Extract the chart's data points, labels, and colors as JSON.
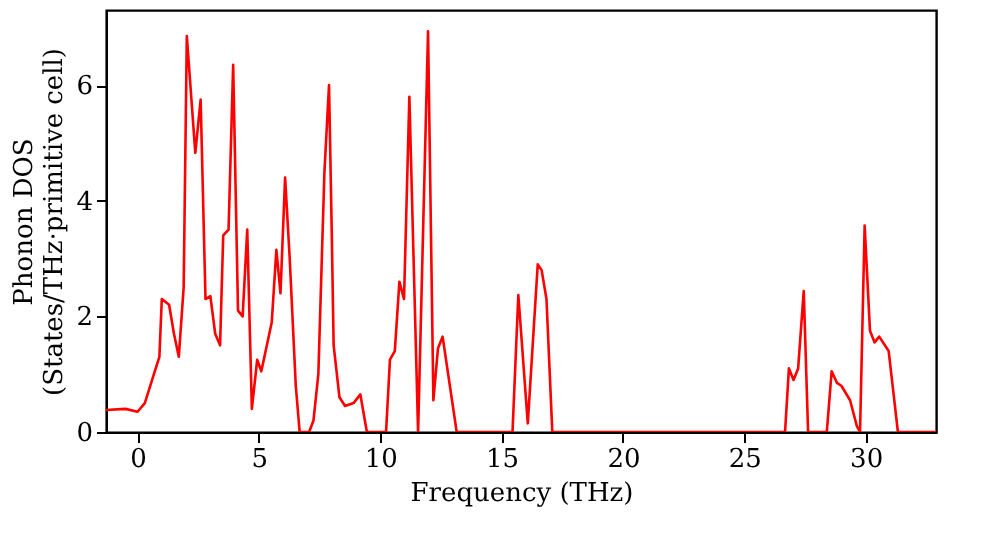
{
  "chart_data": {
    "type": "line",
    "xlabel": "Frequency (THz)",
    "ylabel": "Phonon DOS\n(States/THz·primitive cell)",
    "xlim": [
      -1.3,
      32.9
    ],
    "ylim": [
      0,
      7.3
    ],
    "xticks": [
      0,
      5,
      10,
      15,
      20,
      25,
      30
    ],
    "yticks": [
      0,
      2,
      4,
      6
    ],
    "grid": false,
    "marker": "none",
    "line_style": "solid",
    "series": [
      {
        "color": "#ff0000",
        "x": [
          -1.3,
          -0.5,
          0,
          0.3,
          0.6,
          0.9,
          1.0,
          1.3,
          1.5,
          1.7,
          1.9,
          2.03,
          2.38,
          2.6,
          2.8,
          3.0,
          3.2,
          3.4,
          3.53,
          3.75,
          3.94,
          4.14,
          4.33,
          4.52,
          4.71,
          4.93,
          5.1,
          5.53,
          5.72,
          5.89,
          6.08,
          6.27,
          6.52,
          6.68,
          7.07,
          7.25,
          7.45,
          7.7,
          7.89,
          8.0,
          8.08,
          8.32,
          8.55,
          8.9,
          9.18,
          9.45,
          10.24,
          10.4,
          10.6,
          10.79,
          10.98,
          11.2,
          11.56,
          11.97,
          12.19,
          12.38,
          12.57,
          13.15,
          15.45,
          15.69,
          16.08,
          16.49,
          16.65,
          16.85,
          17.09,
          26.68,
          26.84,
          27.03,
          27.22,
          27.45,
          27.63,
          28.4,
          28.6,
          28.82,
          29.0,
          29.36,
          29.64,
          29.77,
          29.96,
          30.18,
          30.37,
          30.56,
          30.95,
          31.33,
          32.9
        ],
        "values": [
          0.38,
          0.4,
          0.35,
          0.5,
          0.9,
          1.3,
          2.3,
          2.2,
          1.7,
          1.3,
          2.5,
          6.85,
          4.83,
          5.75,
          2.3,
          2.35,
          1.7,
          1.5,
          3.4,
          3.5,
          6.35,
          2.1,
          2.0,
          3.5,
          0.4,
          1.25,
          1.05,
          1.9,
          3.15,
          2.4,
          4.4,
          3.0,
          0.8,
          0,
          0,
          0.2,
          1.0,
          4.5,
          6.0,
          3.5,
          1.5,
          0.6,
          0.45,
          0.5,
          0.65,
          0,
          0,
          1.25,
          1.4,
          2.6,
          2.3,
          5.8,
          0,
          6.93,
          0.55,
          1.45,
          1.65,
          0,
          0,
          2.37,
          0.15,
          2.9,
          2.8,
          2.3,
          0,
          0,
          1.1,
          0.9,
          1.1,
          2.44,
          0,
          0,
          1.05,
          0.85,
          0.8,
          0.55,
          0.1,
          0,
          3.57,
          1.75,
          1.55,
          1.65,
          1.4,
          0,
          0
        ]
      }
    ]
  }
}
